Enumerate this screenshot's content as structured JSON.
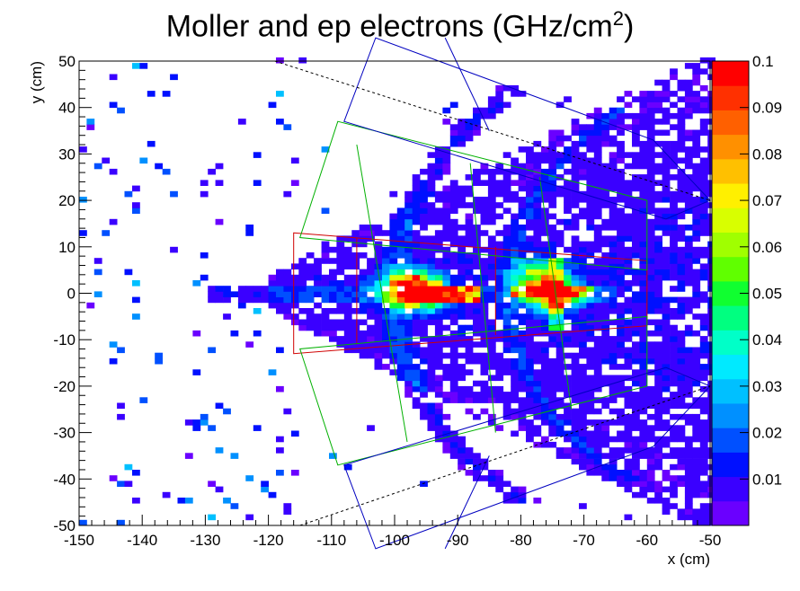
{
  "chart_data": {
    "type": "heatmap",
    "title": "Moller and ep electrons (GHz/cm",
    "title_sup": "2",
    "title_close": ")",
    "xlabel": "x (cm)",
    "ylabel": "y (cm)",
    "xlim": [
      -150,
      -50
    ],
    "ylim": [
      -50,
      50
    ],
    "x_ticks": [
      "-150",
      "-140",
      "-130",
      "-120",
      "-110",
      "-100",
      "-90",
      "-80",
      "-70",
      "-60",
      "-50"
    ],
    "y_ticks": [
      "50",
      "40",
      "30",
      "20",
      "10",
      "0",
      "-10",
      "-20",
      "-30",
      "-40",
      "-50"
    ],
    "colorbar": {
      "range": [
        0,
        0.1
      ],
      "ticks": [
        "0.1",
        "0.09",
        "0.08",
        "0.07",
        "0.06",
        "0.05",
        "0.04",
        "0.03",
        "0.02",
        "0.01"
      ],
      "palette": [
        "#6a00ff",
        "#3a00ff",
        "#0010ff",
        "#0050ff",
        "#0090ff",
        "#00c0ff",
        "#00eaff",
        "#00ffc8",
        "#00ff80",
        "#10ff30",
        "#60ff00",
        "#a0ff00",
        "#d8ff00",
        "#fff000",
        "#ffc000",
        "#ff9000",
        "#ff6000",
        "#ff3000",
        "#ff0000"
      ]
    },
    "hotspots": [
      {
        "x": -96,
        "y": 0,
        "value": 0.1
      },
      {
        "x": -75,
        "y": 0,
        "value": 0.1
      },
      {
        "x": -98,
        "y": 2,
        "value": 0.06
      },
      {
        "x": -77,
        "y": 4,
        "value": 0.05
      }
    ]
  }
}
